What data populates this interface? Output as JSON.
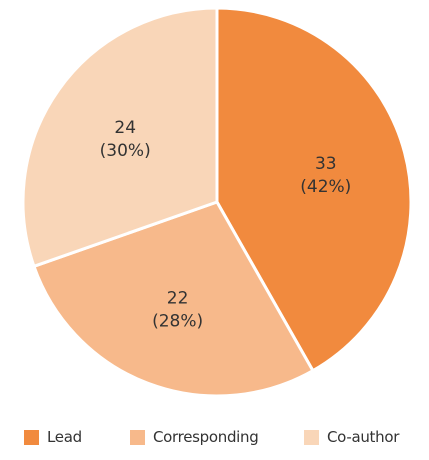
{
  "chart_data": {
    "type": "pie",
    "title": "",
    "categories": [
      "Lead",
      "Corresponding",
      "Co-author"
    ],
    "values": [
      33,
      22,
      24
    ],
    "percent_labels": [
      "(42%)",
      "(28%)",
      "(30%)"
    ],
    "value_labels": [
      "33",
      "22",
      "24"
    ],
    "colors": [
      "#F18A3E",
      "#F7B98B",
      "#F9D6B8"
    ],
    "start_angle_deg": 0,
    "direction": "clockwise",
    "legend_position": "bottom"
  }
}
